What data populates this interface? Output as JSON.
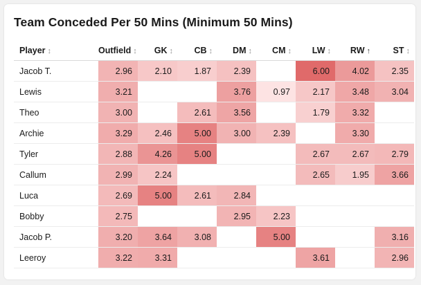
{
  "title": "Team Conceded Per 50 Mins (Minimum 50 Mins)",
  "columns": [
    {
      "label": "Player",
      "sort_icon": "↕"
    },
    {
      "label": "Outfield",
      "sort_icon": "↕"
    },
    {
      "label": "GK",
      "sort_icon": "↕"
    },
    {
      "label": "CB",
      "sort_icon": "↕"
    },
    {
      "label": "DM",
      "sort_icon": "↕"
    },
    {
      "label": "CM",
      "sort_icon": "↕"
    },
    {
      "label": "LW",
      "sort_icon": "↕"
    },
    {
      "label": "RW",
      "sort_icon": "↑"
    },
    {
      "label": "ST",
      "sort_icon": "↕"
    }
  ],
  "rows": [
    {
      "player": "Jacob T.",
      "values": [
        "2.96",
        "2.10",
        "1.87",
        "2.39",
        "",
        "6.00",
        "4.02",
        "2.35"
      ]
    },
    {
      "player": "Lewis",
      "values": [
        "3.21",
        "",
        "",
        "3.76",
        "0.97",
        "2.17",
        "3.48",
        "3.04"
      ]
    },
    {
      "player": "Theo",
      "values": [
        "3.00",
        "",
        "2.61",
        "3.56",
        "",
        "1.79",
        "3.32",
        ""
      ]
    },
    {
      "player": "Archie",
      "values": [
        "3.29",
        "2.46",
        "5.00",
        "3.00",
        "2.39",
        "",
        "3.30",
        ""
      ]
    },
    {
      "player": "Tyler",
      "values": [
        "2.88",
        "4.26",
        "5.00",
        "",
        "",
        "2.67",
        "2.67",
        "2.79"
      ]
    },
    {
      "player": "Callum",
      "values": [
        "2.99",
        "2.24",
        "",
        "",
        "",
        "2.65",
        "1.95",
        "3.66"
      ]
    },
    {
      "player": "Luca",
      "values": [
        "2.69",
        "5.00",
        "2.61",
        "2.84",
        "",
        "",
        "",
        ""
      ]
    },
    {
      "player": "Bobby",
      "values": [
        "2.75",
        "",
        "",
        "2.95",
        "2.23",
        "",
        "",
        ""
      ]
    },
    {
      "player": "Jacob P.",
      "values": [
        "3.20",
        "3.64",
        "3.08",
        "",
        "5.00",
        "",
        "",
        "3.16"
      ]
    },
    {
      "player": "Leeroy",
      "values": [
        "3.22",
        "3.31",
        "",
        "",
        "",
        "3.61",
        "",
        "2.96"
      ]
    }
  ],
  "colors": {
    "heat_low": "#fde3e3",
    "heat_high": "#e06a6a",
    "sort_active_column": "RW",
    "sort_direction": "ascending"
  }
}
